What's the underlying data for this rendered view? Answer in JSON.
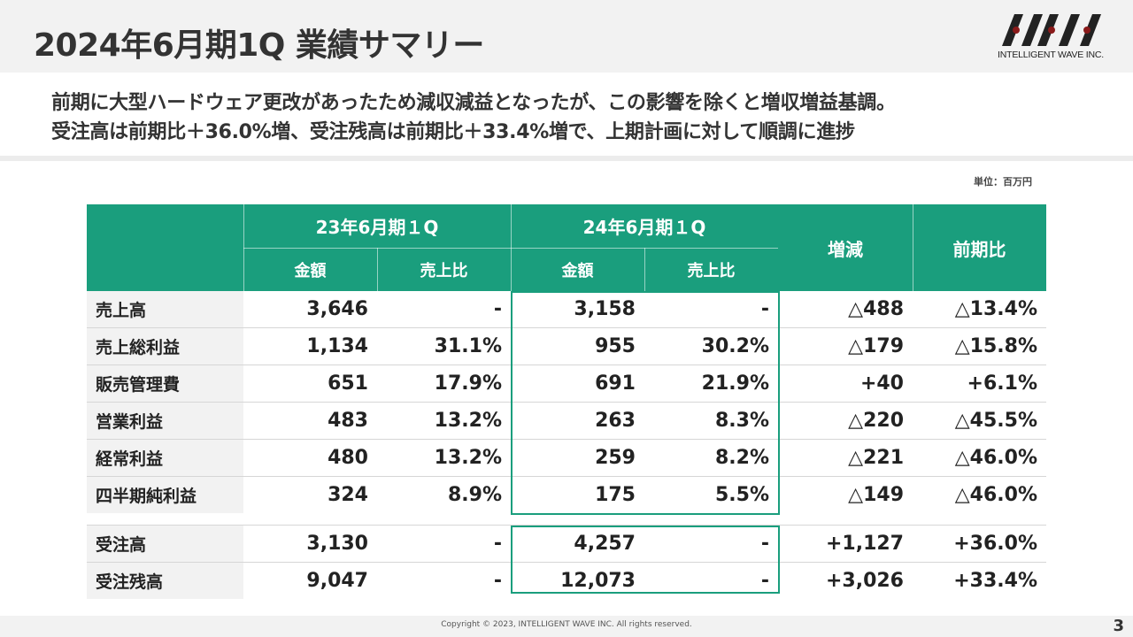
{
  "title": "2024年6月期1Q 業績サマリー",
  "logo": {
    "name": "IWI logo",
    "text": "INTELLIGENT WAVE INC.",
    "color": "#222222"
  },
  "summary": {
    "line1": "前期に大型ハードウェア更改があったため減収減益となったが、この影響を除くと増収増益基調。",
    "line2": "受注高は前期比＋36.0%増、受注残高は前期比＋33.4%増で、上期計画に対して順調に進捗"
  },
  "unit": "単位：百万円",
  "table": {
    "accent_color": "#1a9e7d",
    "headers": {
      "period_prev": "23年6月期１Q",
      "period_curr": "24年6月期１Q",
      "amount": "金額",
      "ratio": "売上比",
      "change": "増減",
      "yoy": "前期比"
    },
    "rows": [
      {
        "label": "売上高",
        "prev_amount": "3,646",
        "prev_ratio": "-",
        "curr_amount": "3,158",
        "curr_ratio": "-",
        "change": "△488",
        "yoy": "△13.4%"
      },
      {
        "label": "売上総利益",
        "prev_amount": "1,134",
        "prev_ratio": "31.1%",
        "curr_amount": "955",
        "curr_ratio": "30.2%",
        "change": "△179",
        "yoy": "△15.8%"
      },
      {
        "label": "販売管理費",
        "prev_amount": "651",
        "prev_ratio": "17.9%",
        "curr_amount": "691",
        "curr_ratio": "21.9%",
        "change": "+40",
        "yoy": "+6.1%"
      },
      {
        "label": "営業利益",
        "prev_amount": "483",
        "prev_ratio": "13.2%",
        "curr_amount": "263",
        "curr_ratio": "8.3%",
        "change": "△220",
        "yoy": "△45.5%"
      },
      {
        "label": "経常利益",
        "prev_amount": "480",
        "prev_ratio": "13.2%",
        "curr_amount": "259",
        "curr_ratio": "8.2%",
        "change": "△221",
        "yoy": "△46.0%"
      },
      {
        "label": "四半期純利益",
        "prev_amount": "324",
        "prev_ratio": "8.9%",
        "curr_amount": "175",
        "curr_ratio": "5.5%",
        "change": "△149",
        "yoy": "△46.0%"
      }
    ],
    "orders": [
      {
        "label": "受注高",
        "prev_amount": "3,130",
        "prev_ratio": "-",
        "curr_amount": "4,257",
        "curr_ratio": "-",
        "change": "+1,127",
        "yoy": "+36.0%"
      },
      {
        "label": "受注残高",
        "prev_amount": "9,047",
        "prev_ratio": "-",
        "curr_amount": "12,073",
        "curr_ratio": "-",
        "change": "+3,026",
        "yoy": "+33.4%"
      }
    ]
  },
  "footer": {
    "copyright": "Copyright © 2023, INTELLIGENT WAVE INC. All rights reserved.",
    "page": "3"
  }
}
